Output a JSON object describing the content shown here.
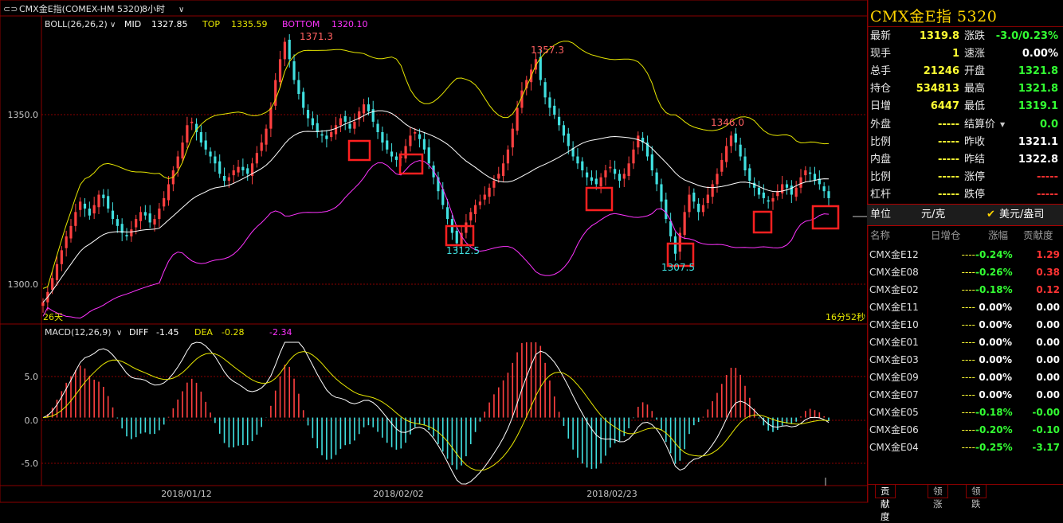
{
  "header": {
    "title": "CMX金E指(COMEX-HM 5320)",
    "period": "8小时"
  },
  "indicators": {
    "boll": {
      "label": "BOLL(26,26,2)",
      "mid_label": "MID",
      "mid": "1327.85",
      "top_label": "TOP",
      "top": "1335.59",
      "bottom_label": "BOTTOM",
      "bottom": "1320.10"
    },
    "macd": {
      "label": "MACD(12,26,9)",
      "diff_label": "DIFF",
      "diff": "-1.45",
      "dea_label": "DEA",
      "dea": "-0.28",
      "macd": "-2.34"
    },
    "price_axis": [
      "1350.0",
      "1300.0"
    ],
    "macd_axis": [
      "5.0",
      "0.0",
      "-5.0"
    ],
    "bar_count": "26天",
    "countdown": "16分52秒",
    "extreme_labels": [
      "1371.3",
      "1357.3",
      "1346.0",
      "1312.5",
      "1307.5"
    ]
  },
  "chart_data": {
    "type": "candlestick",
    "x_ticks": [
      "2018/01/12",
      "2018/02/02",
      "2018/02/23"
    ],
    "ylim": [
      1290,
      1378
    ],
    "macd_ylim": [
      -7.5,
      8.5
    ],
    "highs": [
      1371.3,
      1357.3,
      1346.0
    ],
    "lows": [
      1312.5,
      1307.5
    ],
    "close_series": [
      1296,
      1299,
      1303,
      1307,
      1311,
      1315,
      1318,
      1322,
      1325,
      1323,
      1321,
      1324,
      1327,
      1326,
      1323,
      1320,
      1318,
      1316,
      1315,
      1317,
      1320,
      1322,
      1321,
      1319,
      1320,
      1323,
      1326,
      1330,
      1334,
      1338,
      1342,
      1347,
      1348,
      1345,
      1342,
      1340,
      1338,
      1336,
      1333,
      1331,
      1332,
      1334,
      1335,
      1334,
      1333,
      1336,
      1339,
      1342,
      1346,
      1352,
      1360,
      1366,
      1371,
      1366,
      1360,
      1356,
      1352,
      1349,
      1347,
      1345,
      1344,
      1343,
      1345,
      1347,
      1349,
      1348,
      1346,
      1348,
      1351,
      1353,
      1351,
      1348,
      1345,
      1342,
      1340,
      1338,
      1337,
      1338,
      1341,
      1344,
      1345,
      1343,
      1340,
      1336,
      1332,
      1328,
      1324,
      1320,
      1316,
      1313,
      1316,
      1319,
      1322,
      1324,
      1325,
      1327,
      1329,
      1331,
      1333,
      1336,
      1340,
      1346,
      1352,
      1357,
      1360,
      1363,
      1366,
      1360,
      1355,
      1352,
      1350,
      1347,
      1344,
      1341,
      1338,
      1336,
      1334,
      1332,
      1331,
      1330,
      1332,
      1334,
      1335,
      1333,
      1331,
      1333,
      1336,
      1340,
      1344,
      1342,
      1338,
      1334,
      1330,
      1325,
      1320,
      1315,
      1310,
      1316,
      1322,
      1327,
      1325,
      1322,
      1324,
      1327,
      1330,
      1333,
      1337,
      1341,
      1344,
      1342,
      1338,
      1334,
      1331,
      1329,
      1327,
      1326,
      1325,
      1326,
      1328,
      1330,
      1329,
      1327,
      1329,
      1332,
      1334,
      1333,
      1331,
      1330,
      1328,
      1326
    ],
    "series": [
      {
        "name": "MID",
        "color": "#ffffff"
      },
      {
        "name": "TOP",
        "color": "#e6e600"
      },
      {
        "name": "BOTTOM",
        "color": "#ff33ff"
      },
      {
        "name": "DIFF",
        "color": "#ffffff"
      },
      {
        "name": "DEA",
        "color": "#e6e600"
      }
    ],
    "highlight_box_count": 8
  },
  "quote": {
    "title": "CMX金E指  5320",
    "rows": [
      {
        "k": "最新",
        "v": "1319.8",
        "vc": "yel",
        "k2": "涨跌",
        "v2": "-3.0/0.23%",
        "v2c": "grn"
      },
      {
        "k": "现手",
        "v": "1",
        "vc": "yel",
        "k2": "速涨",
        "v2": "0.00%",
        "v2c": "wht"
      },
      {
        "k": "总手",
        "v": "21246",
        "vc": "yel",
        "k2": "开盘",
        "v2": "1321.8",
        "v2c": "grn"
      },
      {
        "k": "持仓",
        "v": "534813",
        "vc": "yel",
        "k2": "最高",
        "v2": "1321.8",
        "v2c": "grn"
      },
      {
        "k": "日增",
        "v": "6447",
        "vc": "yel",
        "k2": "最低",
        "v2": "1319.1",
        "v2c": "grn"
      },
      {
        "k": "外盘",
        "v": "-----",
        "vc": "yel",
        "k2": "结算价",
        "v2": "0.0",
        "v2c": "grn"
      },
      {
        "k": "比例",
        "v": "-----",
        "vc": "yel",
        "k2": "昨收",
        "v2": "1321.1",
        "v2c": "wht"
      },
      {
        "k": "内盘",
        "v": "-----",
        "vc": "yel",
        "k2": "昨结",
        "v2": "1322.8",
        "v2c": "wht"
      },
      {
        "k": "比例",
        "v": "-----",
        "vc": "yel",
        "k2": "涨停",
        "v2": "-----",
        "v2c": "red"
      },
      {
        "k": "杠杆",
        "v": "-----",
        "vc": "yel",
        "k2": "跌停",
        "v2": "-----",
        "v2c": "red"
      }
    ],
    "unit_label": "单位",
    "unit_value": "元/克",
    "unit_option": "美元/盎司"
  },
  "contrib": {
    "headers": [
      "名称",
      "日增仓",
      "涨幅",
      "贡献度"
    ],
    "rows": [
      {
        "n": "CMX金E12",
        "d": "----",
        "f": "-0.24%",
        "fc": "grn",
        "g": "1.29",
        "gc": "red"
      },
      {
        "n": "CMX金E08",
        "d": "----",
        "f": "-0.26%",
        "fc": "grn",
        "g": "0.38",
        "gc": "red"
      },
      {
        "n": "CMX金E02",
        "d": "----",
        "f": "-0.18%",
        "fc": "grn",
        "g": "0.12",
        "gc": "red"
      },
      {
        "n": "CMX金E11",
        "d": "----",
        "f": "0.00%",
        "fc": "wht",
        "g": "0.00",
        "gc": "wht"
      },
      {
        "n": "CMX金E10",
        "d": "----",
        "f": "0.00%",
        "fc": "wht",
        "g": "0.00",
        "gc": "wht"
      },
      {
        "n": "CMX金E01",
        "d": "----",
        "f": "0.00%",
        "fc": "wht",
        "g": "0.00",
        "gc": "wht"
      },
      {
        "n": "CMX金E03",
        "d": "----",
        "f": "0.00%",
        "fc": "wht",
        "g": "0.00",
        "gc": "wht"
      },
      {
        "n": "CMX金E09",
        "d": "----",
        "f": "0.00%",
        "fc": "wht",
        "g": "0.00",
        "gc": "wht"
      },
      {
        "n": "CMX金E07",
        "d": "----",
        "f": "0.00%",
        "fc": "wht",
        "g": "0.00",
        "gc": "wht"
      },
      {
        "n": "CMX金E05",
        "d": "----",
        "f": "-0.18%",
        "fc": "grn",
        "g": "-0.00",
        "gc": "grn"
      },
      {
        "n": "CMX金E06",
        "d": "----",
        "f": "-0.20%",
        "fc": "grn",
        "g": "-0.10",
        "gc": "grn"
      },
      {
        "n": "CMX金E04",
        "d": "----",
        "f": "-0.25%",
        "fc": "grn",
        "g": "-3.17",
        "gc": "grn"
      }
    ]
  },
  "tabs": [
    "贡献度",
    "领涨",
    "领跌"
  ],
  "colors": {
    "up": "#ff4040",
    "down": "#40e0e0",
    "grid": "#8a0000",
    "bg": "#000000",
    "highlight": "#ff2020"
  }
}
